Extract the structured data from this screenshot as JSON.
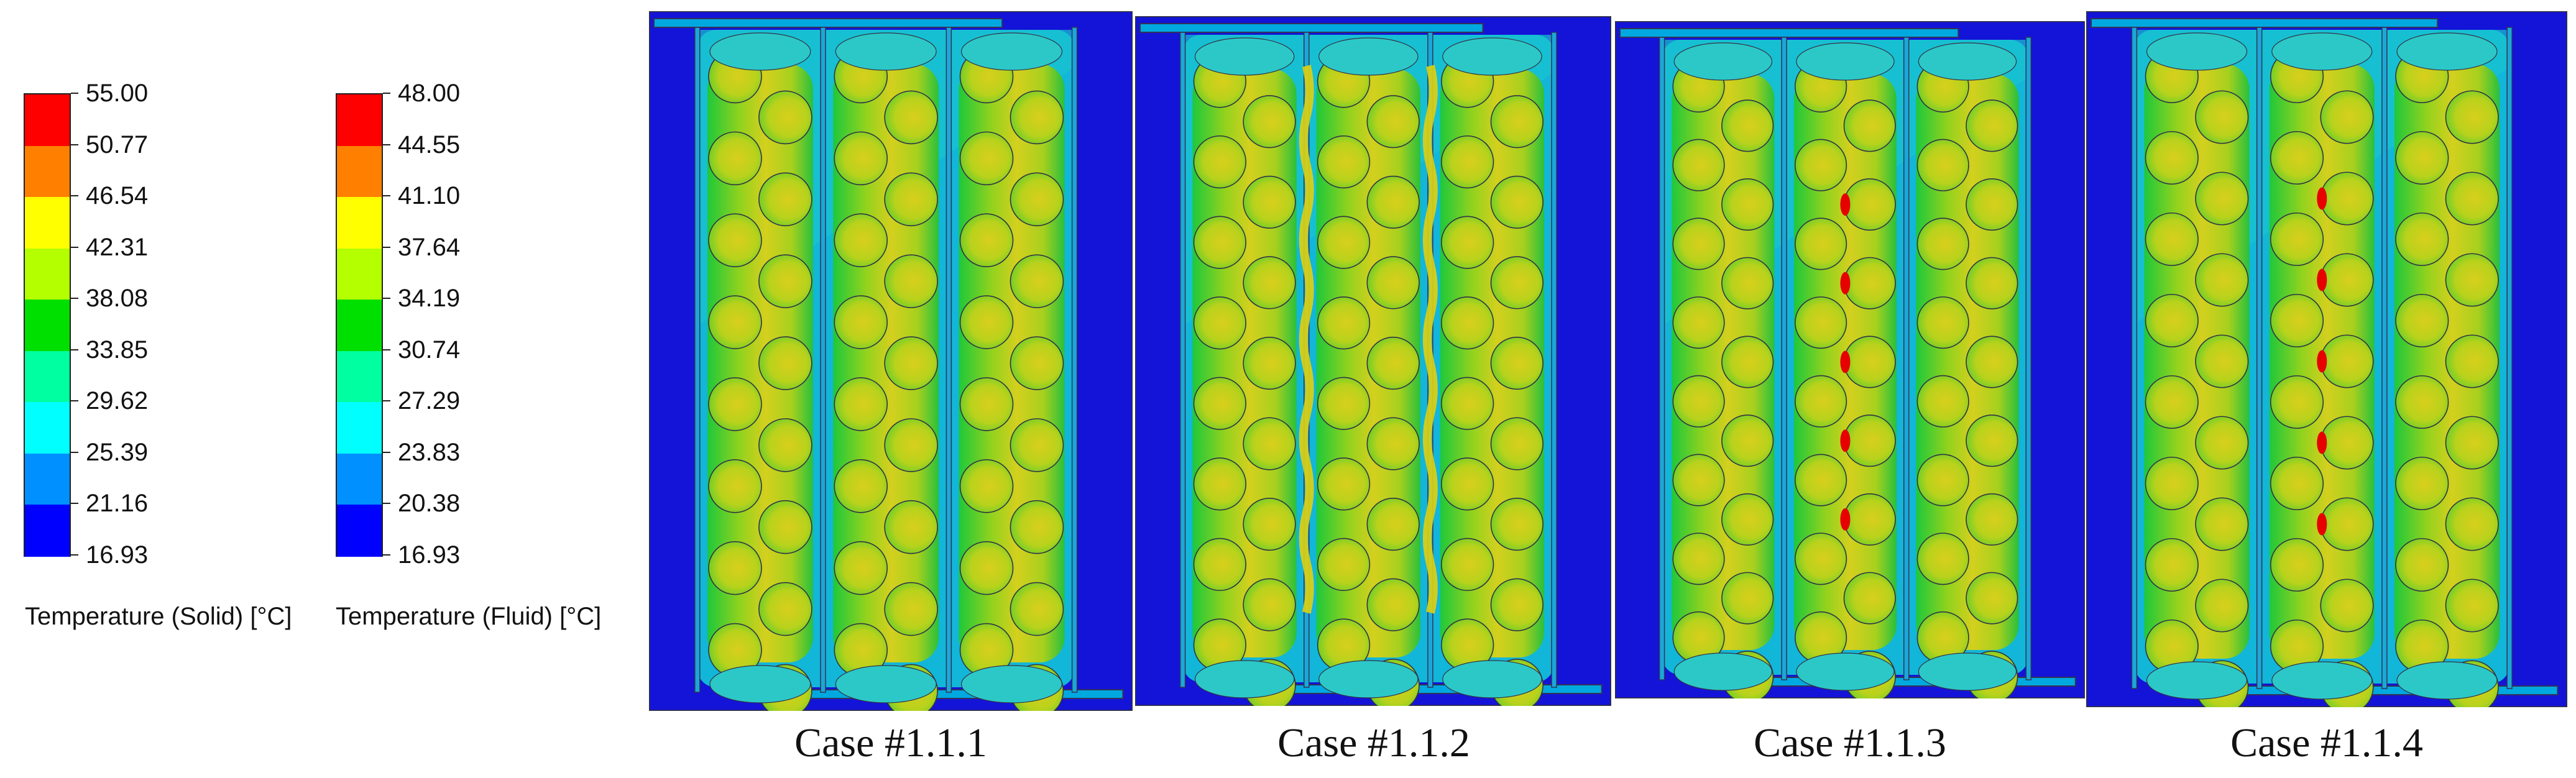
{
  "legends": [
    {
      "title": "Temperature (Solid) [°C]",
      "values": [
        "55.00",
        "50.77",
        "46.54",
        "42.31",
        "38.08",
        "33.85",
        "29.62",
        "25.39",
        "21.16",
        "16.93"
      ]
    },
    {
      "title": "Temperature (Fluid) [°C]",
      "values": [
        "48.00",
        "44.55",
        "41.10",
        "37.64",
        "34.19",
        "30.74",
        "27.29",
        "23.83",
        "20.38",
        "16.93"
      ]
    }
  ],
  "colormap": [
    "#ff0000",
    "#ff8000",
    "#ffff00",
    "#b4ff00",
    "#00e000",
    "#00ffa0",
    "#00ffff",
    "#0090ff",
    "#0000ff"
  ],
  "panels": [
    {
      "caption": "Case #1.1.1",
      "hot_gaps": false
    },
    {
      "caption": "Case #1.1.2",
      "hot_gaps": true
    },
    {
      "caption": "Case #1.1.3",
      "hot_gaps": false
    },
    {
      "caption": "Case #1.1.4",
      "hot_gaps": false
    }
  ]
}
